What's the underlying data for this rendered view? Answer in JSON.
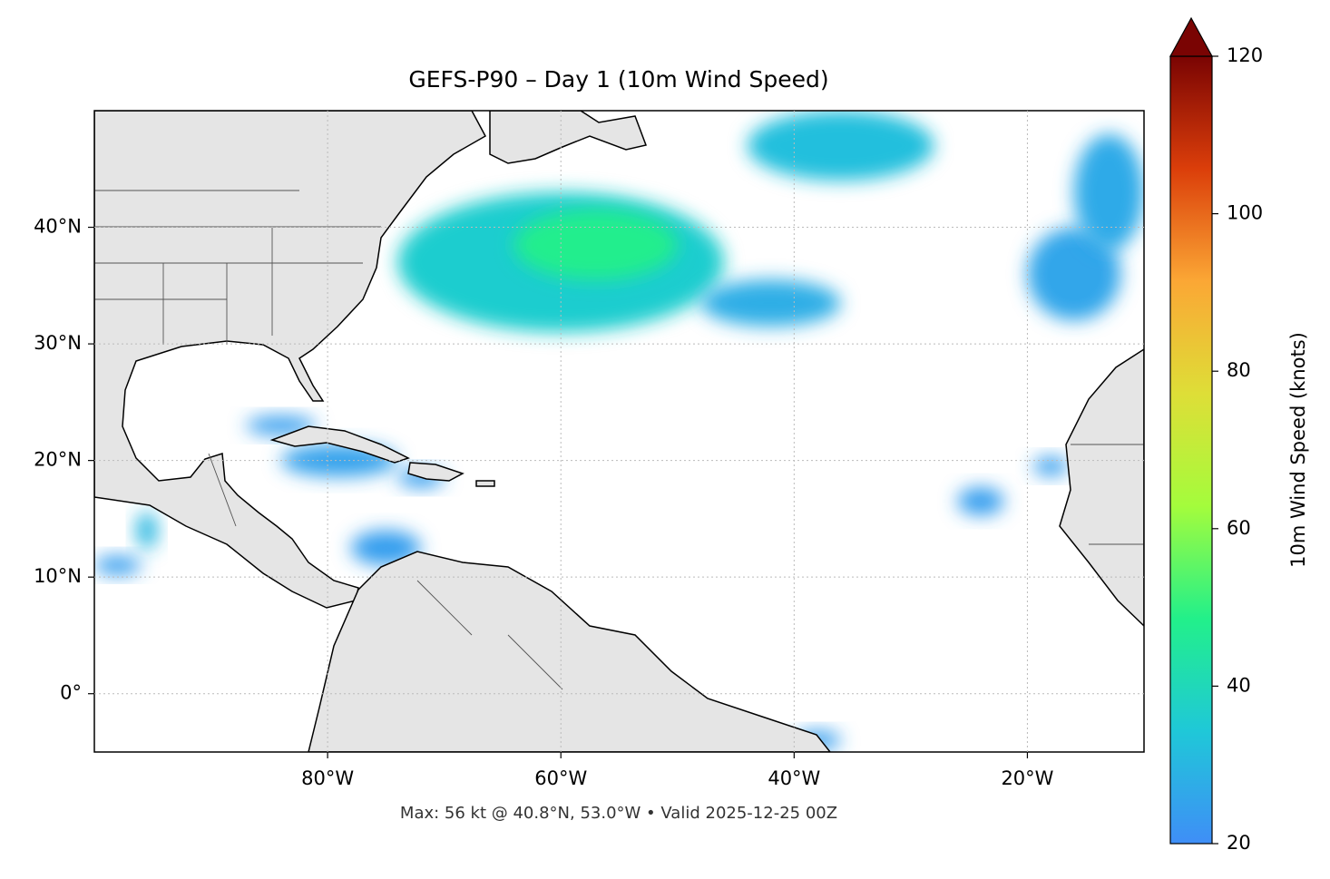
{
  "chart_data": {
    "type": "map",
    "title": "GEFS-P90 – Day 1 (10m Wind Speed)",
    "annotation": "Max: 56 kt @ 40.8°N, 53.0°W • Valid 2025-12-25 00Z",
    "xlim": [
      -100,
      -10
    ],
    "ylim": [
      -5,
      50
    ],
    "xticks": [
      {
        "value": -80,
        "label": "80°W"
      },
      {
        "value": -60,
        "label": "60°W"
      },
      {
        "value": -40,
        "label": "40°W"
      },
      {
        "value": -20,
        "label": "20°W"
      }
    ],
    "yticks": [
      {
        "value": 0,
        "label": "0°"
      },
      {
        "value": 10,
        "label": "10°N"
      },
      {
        "value": 20,
        "label": "20°N"
      },
      {
        "value": 30,
        "label": "30°N"
      },
      {
        "value": 40,
        "label": "40°N"
      }
    ],
    "grid": true,
    "colorbar": {
      "label": "10m Wind Speed (knots)",
      "lim": [
        20,
        120
      ],
      "ticks": [
        20,
        40,
        60,
        80,
        100,
        120
      ],
      "colors": [
        "#3f8ef7",
        "#1fc8d8",
        "#22f08a",
        "#a4fc3c",
        "#dede37",
        "#fba735",
        "#db3e0a",
        "#7a0403"
      ]
    },
    "wind_field": [
      {
        "lon": -60,
        "lat": 37,
        "rx": 14,
        "ry": 6,
        "speed": 36
      },
      {
        "lon": -57,
        "lat": 38.5,
        "rx": 7,
        "ry": 3,
        "speed": 48
      },
      {
        "lon": -42,
        "lat": 33.5,
        "rx": 6,
        "ry": 2,
        "speed": 28
      },
      {
        "lon": -36,
        "lat": 47,
        "rx": 8,
        "ry": 3,
        "speed": 32
      },
      {
        "lon": -16,
        "lat": 36,
        "rx": 4,
        "ry": 4,
        "speed": 26
      },
      {
        "lon": -13,
        "lat": 43,
        "rx": 3,
        "ry": 5,
        "speed": 27
      },
      {
        "lon": -84,
        "lat": 23,
        "rx": 3,
        "ry": 0.8,
        "speed": 24
      },
      {
        "lon": -79,
        "lat": 20,
        "rx": 5,
        "ry": 1.4,
        "speed": 25
      },
      {
        "lon": -72,
        "lat": 18.5,
        "rx": 2,
        "ry": 0.8,
        "speed": 24
      },
      {
        "lon": -75,
        "lat": 12.5,
        "rx": 3,
        "ry": 1.5,
        "speed": 24
      },
      {
        "lon": -95.5,
        "lat": 14,
        "rx": 0.9,
        "ry": 1.6,
        "speed": 30
      },
      {
        "lon": -98,
        "lat": 11,
        "rx": 2,
        "ry": 0.8,
        "speed": 24
      },
      {
        "lon": -18,
        "lat": 19.5,
        "rx": 1.5,
        "ry": 0.8,
        "speed": 24
      },
      {
        "lon": -24,
        "lat": 16.5,
        "rx": 2,
        "ry": 1.2,
        "speed": 24
      },
      {
        "lon": -38,
        "lat": -4,
        "rx": 2,
        "ry": 0.8,
        "speed": 24
      }
    ]
  }
}
